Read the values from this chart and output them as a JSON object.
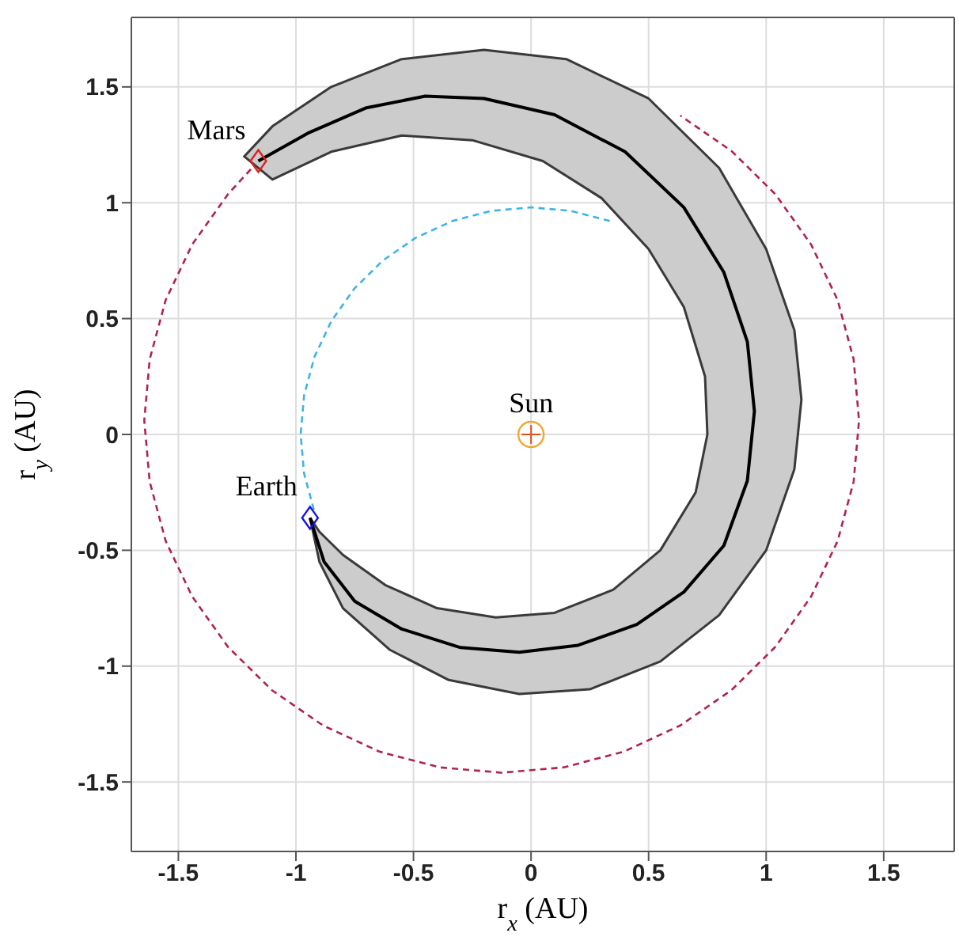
{
  "chart_data": {
    "type": "line",
    "xlabel": "r$_{x}$ (AU)",
    "ylabel": "r$_{y}$ (AU)",
    "xlim": [
      -1.7,
      1.8
    ],
    "ylim": [
      -1.8,
      1.8
    ],
    "xticks": [
      -1.5,
      -1,
      -0.5,
      0,
      0.5,
      1,
      1.5
    ],
    "yticks": [
      -1.5,
      -1,
      -0.5,
      0,
      0.5,
      1,
      1.5
    ],
    "grid": true,
    "series": [
      {
        "color": "#b0234a",
        "line_style": "dashed",
        "marker": "none",
        "x": [
          -1.16,
          -1.289,
          -1.441,
          -1.554,
          -1.622,
          -1.645,
          -1.622,
          -1.554,
          -1.441,
          -1.289,
          -1.102,
          -0.885,
          -0.645,
          -0.389,
          -0.125,
          0.139,
          0.395,
          0.635,
          0.852,
          1.039,
          1.191,
          1.304,
          1.372,
          1.395,
          1.372,
          1.304,
          1.191,
          1.039,
          0.852,
          0.635
        ],
        "values": [
          1.18,
          1.037,
          0.82,
          0.58,
          0.324,
          0.06,
          -0.204,
          -0.46,
          -0.7,
          -0.917,
          -1.104,
          -1.256,
          -1.369,
          -1.437,
          -1.46,
          -1.437,
          -1.369,
          -1.256,
          -1.104,
          -0.917,
          -0.7,
          -0.46,
          -0.204,
          0.06,
          0.324,
          0.58,
          0.82,
          1.037,
          1.224,
          1.376
        ]
      },
      {
        "color": "#3cb4e6",
        "line_style": "dashed",
        "marker": "none",
        "x": [
          0.335,
          0.17,
          0,
          -0.17,
          -0.335,
          -0.49,
          -0.63,
          -0.751,
          -0.849,
          -0.921,
          -0.965,
          -0.98,
          -0.965,
          -0.921
        ],
        "values": [
          0.921,
          0.965,
          0.98,
          0.965,
          0.921,
          0.849,
          0.751,
          0.63,
          0.49,
          0.335,
          0.17,
          0,
          -0.17,
          -0.335
        ]
      },
      {
        "type": "area",
        "color": "#cccccc",
        "x": [
          -0.94,
          -0.9,
          -0.8,
          -0.6,
          -0.35,
          -0.05,
          0.25,
          0.55,
          0.8,
          1.0,
          1.12,
          1.15,
          1.12,
          1.0,
          0.8,
          0.5,
          0.15,
          -0.2,
          -0.55,
          -0.85,
          -1.1,
          -1.22,
          -1.1,
          -0.85,
          -0.55,
          -0.25,
          0.05,
          0.3,
          0.5,
          0.65,
          0.74,
          0.75,
          0.7,
          0.55,
          0.35,
          0.1,
          -0.15,
          -0.4,
          -0.62,
          -0.8,
          -0.9,
          -0.94
        ],
        "values": [
          -0.36,
          -0.55,
          -0.75,
          -0.93,
          -1.06,
          -1.12,
          -1.1,
          -0.98,
          -0.78,
          -0.5,
          -0.15,
          0.15,
          0.45,
          0.8,
          1.15,
          1.45,
          1.62,
          1.66,
          1.62,
          1.5,
          1.33,
          1.2,
          1.1,
          1.22,
          1.29,
          1.27,
          1.18,
          1.02,
          0.8,
          0.55,
          0.25,
          0,
          -0.25,
          -0.5,
          -0.67,
          -0.77,
          -0.79,
          -0.75,
          -0.65,
          -0.52,
          -0.42,
          -0.36
        ]
      },
      {
        "color": "#000000",
        "line_style": "solid",
        "marker": "none",
        "x": [
          -0.94,
          -0.88,
          -0.75,
          -0.55,
          -0.3,
          -0.05,
          0.2,
          0.45,
          0.65,
          0.82,
          0.92,
          0.95,
          0.92,
          0.82,
          0.65,
          0.4,
          0.1,
          -0.2,
          -0.45,
          -0.7,
          -0.95,
          -1.16
        ],
        "values": [
          -0.36,
          -0.55,
          -0.72,
          -0.84,
          -0.92,
          -0.94,
          -0.91,
          -0.82,
          -0.68,
          -0.48,
          -0.2,
          0.1,
          0.4,
          0.7,
          0.98,
          1.22,
          1.38,
          1.45,
          1.46,
          1.41,
          1.3,
          1.18
        ]
      },
      {
        "type": "scatter",
        "name": "Sun",
        "color": "#f0a830",
        "marker": "circle",
        "x": [
          0
        ],
        "values": [
          0
        ]
      },
      {
        "type": "scatter",
        "name": "Earth",
        "color": "#1010f0",
        "marker": "diamond",
        "x": [
          -0.94
        ],
        "values": [
          -0.36
        ]
      },
      {
        "type": "scatter",
        "name": "Mars",
        "color": "#e02020",
        "marker": "diamond",
        "x": [
          -1.16
        ],
        "values": [
          1.18
        ]
      }
    ]
  }
}
